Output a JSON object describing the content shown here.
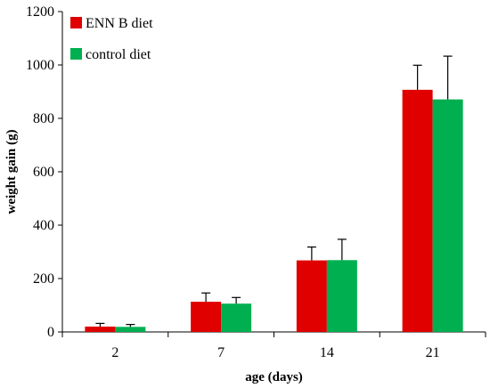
{
  "chart_data": {
    "type": "bar",
    "categories": [
      "2",
      "7",
      "14",
      "21"
    ],
    "series": [
      {
        "name": "ENN B diet",
        "color": "#e00000",
        "values": [
          20,
          113,
          268,
          907
        ],
        "errors": [
          12,
          33,
          50,
          92
        ]
      },
      {
        "name": "control diet",
        "color": "#00b050",
        "values": [
          19,
          106,
          269,
          871
        ],
        "errors": [
          9,
          23,
          78,
          162
        ]
      }
    ],
    "xlabel": "age (days)",
    "ylabel": "weight gain (g)",
    "ylim": [
      0,
      1200
    ],
    "yticks": [
      "0",
      "200",
      "400",
      "600",
      "800",
      "1000",
      "1200"
    ],
    "grid": false,
    "legend_position": "top-left"
  }
}
